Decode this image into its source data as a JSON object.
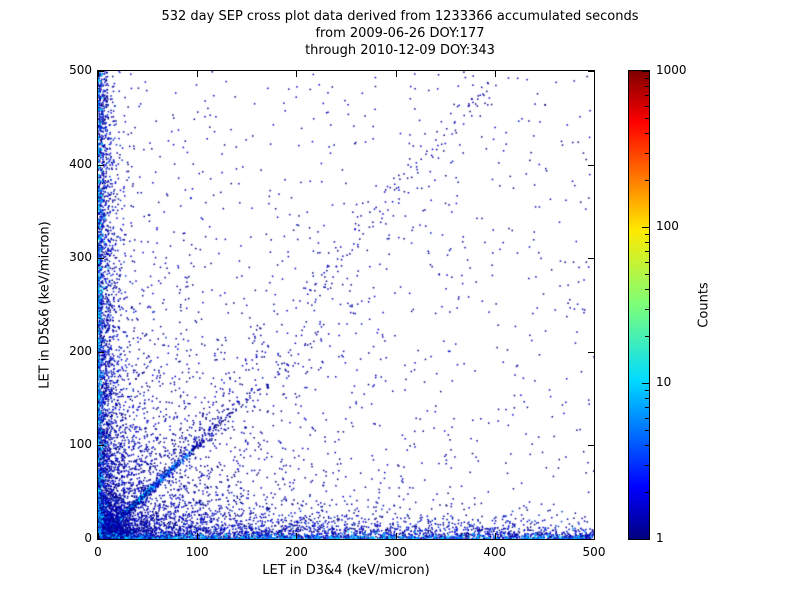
{
  "title": {
    "line1": "532 day SEP cross plot data derived from 1233366 accumulated seconds",
    "line2": "from 2009-06-26 DOY:177",
    "line3": "through 2010-12-09 DOY:343"
  },
  "chart_data": {
    "type": "scatter",
    "title": "532 day SEP cross plot data derived from 1233366 accumulated seconds",
    "subtitle1": "from 2009-06-26 DOY:177",
    "subtitle2": "through 2010-12-09 DOY:343",
    "xlabel": "LET in D3&4 (keV/micron)",
    "ylabel": "LET in D5&6 (keV/micron)",
    "xlim": [
      0,
      500
    ],
    "ylim": [
      0,
      500
    ],
    "x_ticks": [
      0,
      100,
      200,
      300,
      400,
      500
    ],
    "y_ticks": [
      0,
      100,
      200,
      300,
      400,
      500
    ],
    "grid": false,
    "point_color_low": "#000080",
    "colorbar": {
      "label": "Counts",
      "scale": "log",
      "min": 1,
      "max": 1000,
      "ticks": [
        1,
        10,
        100,
        1000
      ],
      "colormap": "jet",
      "gradient": [
        [
          0.0,
          "#00007f"
        ],
        [
          0.11,
          "#0000ff"
        ],
        [
          0.34,
          "#00dbff"
        ],
        [
          0.5,
          "#7cff79"
        ],
        [
          0.66,
          "#ffea00"
        ],
        [
          0.89,
          "#ff0000"
        ],
        [
          1.0,
          "#7f0000"
        ]
      ]
    },
    "description": "2D density cross plot: bright multi-colored dense cluster near the origin, cyan diagonal streak along y=x out to ~80 keV/micron, dark blue (count=1) speckle filling the lower-left wedge, sparse single-count points along both axes out to 500, and a faint diagonal continuation of points toward (380,480).",
    "distributions": [
      {
        "name": "origin-core",
        "type": "radial",
        "count": 6500,
        "scale": 8,
        "size": 1.6,
        "color_stops": [
          [
            3.5,
            [
              "#aaff00",
              "#55ff33",
              "#00ff99",
              "#ffee00",
              "#00ffcc"
            ]
          ],
          [
            9,
            [
              "#00ffcc",
              "#33ff66",
              "#00e5ff",
              "#7dff00"
            ]
          ],
          [
            18,
            [
              "#00e5ff",
              "#00bfff",
              "#1e90ff"
            ]
          ],
          [
            9999,
            [
              "#0000c8",
              "#000096",
              "#2244ee"
            ]
          ]
        ]
      },
      {
        "name": "diagonal-streak",
        "type": "diag",
        "count": 1600,
        "scale": 30,
        "slope": 1.0,
        "sigma0": 0.6,
        "sigma_slope": 0.018,
        "size": 1.6,
        "color_stops": [
          [
            55,
            [
              "#00e5ff",
              "#00ffff",
              "#00bfff"
            ]
          ],
          [
            95,
            [
              "#0077ff",
              "#00aaff",
              "#2255ff"
            ]
          ],
          [
            9999,
            [
              "#0000b4",
              "#000080"
            ]
          ]
        ]
      },
      {
        "name": "diagonal-sparse-extension",
        "type": "diag_uniform",
        "count": 210,
        "x0": 40,
        "x1": 395,
        "slope": 1.24,
        "sigma": 11,
        "size": 1.5,
        "palette": [
          "#000080",
          "#0000aa",
          "#0000d2"
        ]
      },
      {
        "name": "diagonal-far",
        "type": "diag",
        "count": 420,
        "scale": 95,
        "slope": 1.0,
        "sigma0": 1.5,
        "sigma_slope": 0.05,
        "size": 1.5,
        "color_stops": [
          [
            9999,
            [
              "#000080",
              "#0000b4",
              "#0011cc"
            ]
          ]
        ]
      },
      {
        "name": "left-vertical-fan",
        "type": "fan_y",
        "count": 2800,
        "scale": 13,
        "exp": 1.55,
        "taper": 0.55,
        "size": 1.5,
        "palette": [
          "#000080",
          "#0000aa",
          "#0000d2",
          "#0033cc"
        ]
      },
      {
        "name": "bottom-horizontal-fan",
        "type": "fan_x",
        "count": 2800,
        "scale": 13,
        "exp": 1.55,
        "taper": 0.55,
        "size": 1.5,
        "palette": [
          "#000080",
          "#0000aa",
          "#0000d2",
          "#0033cc"
        ]
      },
      {
        "name": "left-edge-bright",
        "type": "fan_y",
        "count": 900,
        "scale": 1.8,
        "exp": 2.6,
        "taper": 0,
        "size": 1.6,
        "palette": [
          "#00cfff",
          "#00aaff",
          "#0077ff",
          "#00e5ff",
          "#0044ff"
        ]
      },
      {
        "name": "bottom-edge-bright",
        "type": "fan_x",
        "count": 900,
        "scale": 1.8,
        "exp": 2.6,
        "taper": 0,
        "size": 1.6,
        "palette": [
          "#00cfff",
          "#00aaff",
          "#0077ff",
          "#00e5ff",
          "#0044ff"
        ]
      },
      {
        "name": "wedge-mid",
        "type": "exp2",
        "count": 1700,
        "sx": 75,
        "sy": 75,
        "size": 1.5,
        "palette": [
          "#000080",
          "#0000aa",
          "#0000cc"
        ]
      },
      {
        "name": "wedge-broad",
        "type": "exp2",
        "count": 600,
        "sx": 150,
        "sy": 150,
        "size": 1.5,
        "palette": [
          "#000080",
          "#0000aa"
        ]
      },
      {
        "name": "uniform-sparse",
        "type": "uniform",
        "count": 650,
        "size": 1.5,
        "palette": [
          "#000080",
          "#0000aa",
          "#0000cc"
        ]
      }
    ]
  }
}
